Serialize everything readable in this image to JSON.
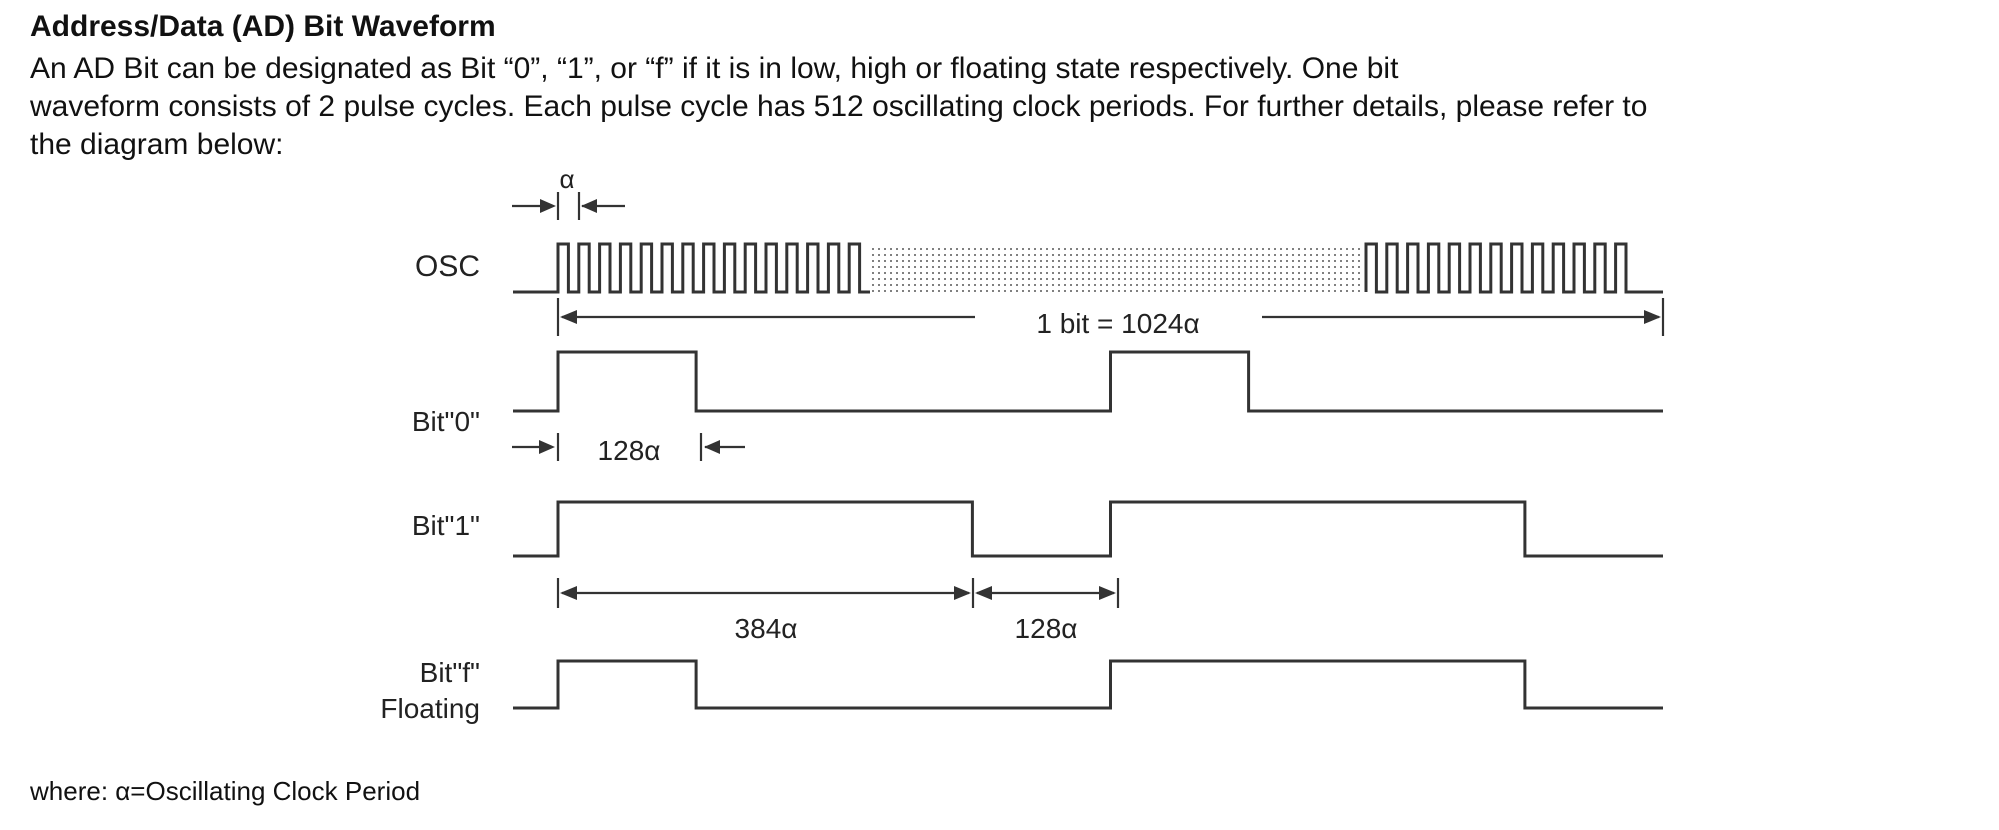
{
  "heading": "Address/Data (AD) Bit Waveform",
  "description": {
    "line1": "An AD Bit can be designated as Bit “0”, “1”, or “f” if it is in low, high or floating state respectively. One bit",
    "line2": "waveform consists of 2 pulse cycles. Each pulse cycle has 512 oscillating clock periods. For further details, please refer to",
    "line3": "the diagram below:"
  },
  "diagram": {
    "alpha_label": "α",
    "signals": {
      "osc": "OSC",
      "bit0": "Bit\"0\"",
      "bit1": "Bit\"1\"",
      "bitf_line1": "Bit\"f\"",
      "bitf_line2": "Floating"
    },
    "dimensions": {
      "one_bit": "1 bit = 1024α",
      "bit0_high": "128α",
      "bit1_high": "384α",
      "bit1_low": "128α"
    },
    "timing_units": {
      "bit_length": 1024,
      "pulse_cycle": 512,
      "bit0": [
        [
          0,
          128,
          1
        ],
        [
          128,
          512,
          0
        ],
        [
          512,
          640,
          1
        ],
        [
          640,
          1024,
          0
        ]
      ],
      "bit1": [
        [
          0,
          384,
          1
        ],
        [
          384,
          512,
          0
        ],
        [
          512,
          896,
          1
        ],
        [
          896,
          1024,
          0
        ]
      ],
      "bitf": [
        [
          0,
          128,
          1
        ],
        [
          128,
          512,
          0
        ],
        [
          512,
          896,
          1
        ],
        [
          896,
          1024,
          0
        ]
      ]
    }
  },
  "footnote": "where: α=Oscillating Clock Period"
}
